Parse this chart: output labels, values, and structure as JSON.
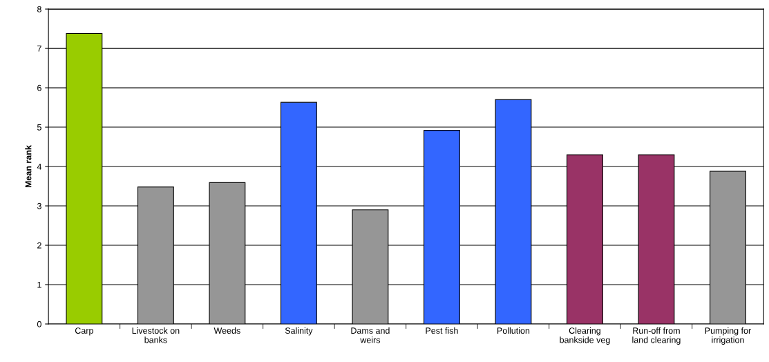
{
  "chart_data": {
    "type": "bar",
    "ylabel": "Mean rank",
    "categories": [
      "Carp",
      "Livestock on\nbanks",
      "Weeds",
      "Salinity",
      "Dams and\nweirs",
      "Pest fish",
      "Pollution",
      "Clearing\nbankside veg",
      "Run-off from\nland clearing",
      "Pumping for\nirrigation"
    ],
    "values": [
      7.38,
      3.48,
      3.59,
      5.63,
      2.9,
      4.92,
      5.7,
      4.3,
      4.3,
      3.88
    ],
    "colors": [
      "#99cc00",
      "#969696",
      "#969696",
      "#3366ff",
      "#969696",
      "#3366ff",
      "#3366ff",
      "#993366",
      "#993366",
      "#969696"
    ],
    "ylim": [
      0,
      8
    ],
    "yticks": [
      0,
      1,
      2,
      3,
      4,
      5,
      6,
      7,
      8
    ],
    "grid": "y"
  }
}
